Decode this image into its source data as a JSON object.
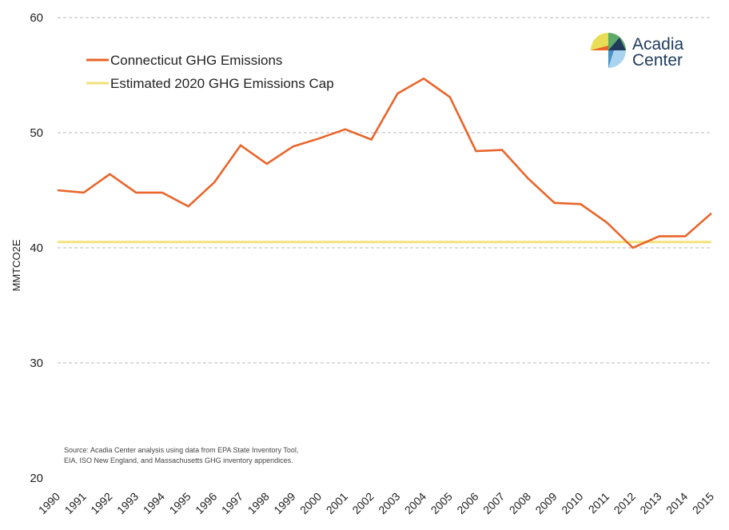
{
  "chart_data": {
    "type": "line",
    "ylabel": "MMTCO2E",
    "ylim": [
      20,
      60
    ],
    "yticks": [
      20,
      30,
      40,
      50,
      60
    ],
    "grid": "horizontal dashed",
    "legend_placement": "top-left",
    "x": [
      "1990",
      "1991",
      "1992",
      "1993",
      "1994",
      "1995",
      "1996",
      "1997",
      "1998",
      "1999",
      "2000",
      "2001",
      "2002",
      "2003",
      "2004",
      "2005",
      "2006",
      "2007",
      "2008",
      "2009",
      "2010",
      "2011",
      "2012",
      "2013",
      "2014",
      "2015"
    ],
    "series": [
      {
        "name": "Connecticut GHG Emissions",
        "color": "#e9652a",
        "values": [
          45.0,
          44.8,
          46.4,
          44.8,
          44.8,
          43.6,
          45.7,
          48.9,
          47.3,
          48.8,
          49.5,
          50.3,
          49.4,
          53.4,
          54.7,
          53.1,
          48.4,
          48.5,
          46.0,
          43.9,
          43.8,
          42.2,
          40.0,
          41.0,
          41.0,
          43.0
        ]
      },
      {
        "name": "Estimated 2020 GHG Emissions Cap",
        "color": "#f2e27a",
        "values": [
          40.5,
          40.5,
          40.5,
          40.5,
          40.5,
          40.5,
          40.5,
          40.5,
          40.5,
          40.5,
          40.5,
          40.5,
          40.5,
          40.5,
          40.5,
          40.5,
          40.5,
          40.5,
          40.5,
          40.5,
          40.5,
          40.5,
          40.5,
          40.5,
          40.5,
          40.5
        ]
      }
    ],
    "annotations": [
      "Source: Acadia Center analysis using data from EPA State Inventory Tool,",
      "EIA, ISO New England, and Massachusetts GHG inventory appendices."
    ]
  },
  "logo": {
    "line1": "Acadia",
    "line2": "Center",
    "colors": {
      "yellow": "#e9dd55",
      "green": "#5daa6a",
      "navy": "#1f3a5c",
      "red": "#e9652a",
      "blue": "#4a90c8",
      "light_blue": "#a9d3ee"
    }
  },
  "colors": {
    "grid": "#b8b8b8",
    "text": "#222222"
  }
}
